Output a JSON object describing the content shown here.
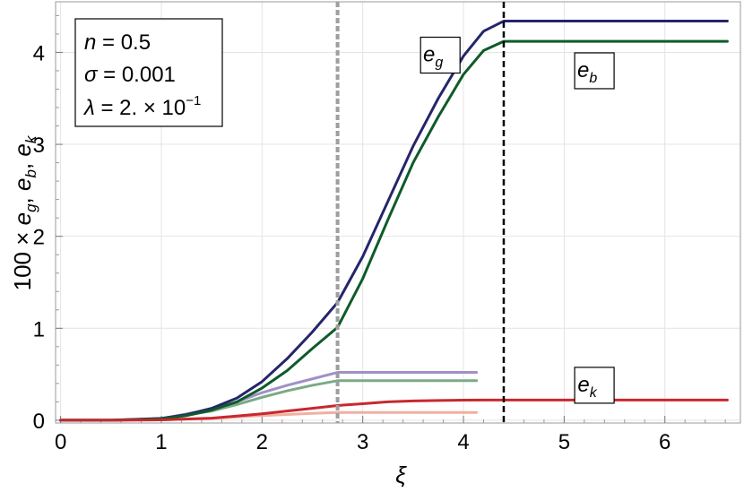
{
  "chart_data": {
    "type": "line",
    "xlabel": "ξ",
    "ylabel_parts": {
      "prefix": "100 × ",
      "eg": "e",
      "eg_sub": "g",
      "sep1": ", ",
      "eb": "e",
      "eb_sub": "b",
      "sep2": ", ",
      "ek": "e",
      "ek_sub": "k"
    },
    "xlim": [
      -0.05,
      6.75
    ],
    "ylim": [
      -0.03,
      4.55
    ],
    "x_ticks": [
      0,
      1,
      2,
      3,
      4,
      5,
      6
    ],
    "x_tick_labels": [
      "0",
      "1",
      "2",
      "3",
      "4",
      "5",
      "6"
    ],
    "y_ticks": [
      0,
      1,
      2,
      3,
      4
    ],
    "y_tick_labels": [
      "0",
      "1",
      "2",
      "3",
      "4"
    ],
    "grid": true,
    "params_box": {
      "line1_var": "n",
      "line1_eq": " = 0.5",
      "line2_var": "σ",
      "line2_eq": " = 0.001",
      "line3_var": "λ",
      "line3_eq": " = 2. × 10",
      "line3_exp": "−1"
    },
    "vlines": [
      {
        "x": 2.75,
        "color": "#9e9e9e",
        "style": "dashed"
      },
      {
        "x": 4.4,
        "color": "#000000",
        "style": "dashed"
      }
    ],
    "series": [
      {
        "name": "e_g",
        "color": "#25256b",
        "x": [
          0,
          0.5,
          1.0,
          1.25,
          1.5,
          1.75,
          2.0,
          2.25,
          2.5,
          2.75,
          3.0,
          3.25,
          3.5,
          3.75,
          4.0,
          4.2,
          4.4,
          5.0,
          6.0,
          6.62
        ],
        "y": [
          0,
          0,
          0.02,
          0.06,
          0.13,
          0.24,
          0.42,
          0.67,
          0.96,
          1.28,
          1.78,
          2.38,
          2.98,
          3.5,
          3.96,
          4.23,
          4.34,
          4.34,
          4.34,
          4.34
        ]
      },
      {
        "name": "e_b",
        "color": "#0e5b2a",
        "x": [
          0,
          0.5,
          1.0,
          1.25,
          1.5,
          1.75,
          2.0,
          2.25,
          2.5,
          2.75,
          3.0,
          3.25,
          3.5,
          3.75,
          4.0,
          4.2,
          4.4,
          5.0,
          6.0,
          6.62
        ],
        "y": [
          0,
          0,
          0.015,
          0.05,
          0.11,
          0.2,
          0.35,
          0.54,
          0.78,
          1.01,
          1.54,
          2.18,
          2.8,
          3.3,
          3.76,
          4.02,
          4.12,
          4.12,
          4.12,
          4.12
        ]
      },
      {
        "name": "e_k",
        "color": "#c8282e",
        "x": [
          0,
          0.5,
          1.0,
          1.5,
          2.0,
          2.25,
          2.5,
          2.75,
          3.0,
          3.25,
          3.5,
          3.75,
          4.0,
          4.2,
          4.4,
          5.0,
          6.0,
          6.62
        ],
        "y": [
          0,
          0,
          0.004,
          0.022,
          0.07,
          0.1,
          0.13,
          0.16,
          0.18,
          0.2,
          0.21,
          0.215,
          0.218,
          0.22,
          0.22,
          0.22,
          0.22,
          0.22
        ]
      },
      {
        "name": "",
        "color": "#a090c8",
        "x": [
          0,
          0.5,
          1.0,
          1.5,
          1.75,
          2.0,
          2.25,
          2.5,
          2.75,
          3.5,
          4.13
        ],
        "y": [
          0,
          0,
          0.018,
          0.12,
          0.2,
          0.3,
          0.38,
          0.45,
          0.52,
          0.52,
          0.52
        ]
      },
      {
        "name": "",
        "color": "#7aaa86",
        "x": [
          0,
          0.5,
          1.0,
          1.5,
          1.75,
          2.0,
          2.25,
          2.5,
          2.75,
          3.5,
          4.13
        ],
        "y": [
          0,
          0,
          0.015,
          0.1,
          0.17,
          0.25,
          0.32,
          0.38,
          0.43,
          0.43,
          0.43
        ]
      },
      {
        "name": "",
        "color": "#efb0a0",
        "x": [
          0,
          0.5,
          1.0,
          1.5,
          2.0,
          2.5,
          2.75,
          3.5,
          4.13
        ],
        "y": [
          0,
          0,
          0.004,
          0.02,
          0.05,
          0.075,
          0.085,
          0.085,
          0.085
        ]
      }
    ],
    "curve_labels": [
      {
        "base": "e",
        "sub": "g",
        "x": 3.77,
        "y": 3.97
      },
      {
        "base": "e",
        "sub": "b",
        "x": 5.3,
        "y": 3.8
      },
      {
        "base": "e",
        "sub": "k",
        "x": 5.3,
        "y": 0.38
      }
    ]
  }
}
